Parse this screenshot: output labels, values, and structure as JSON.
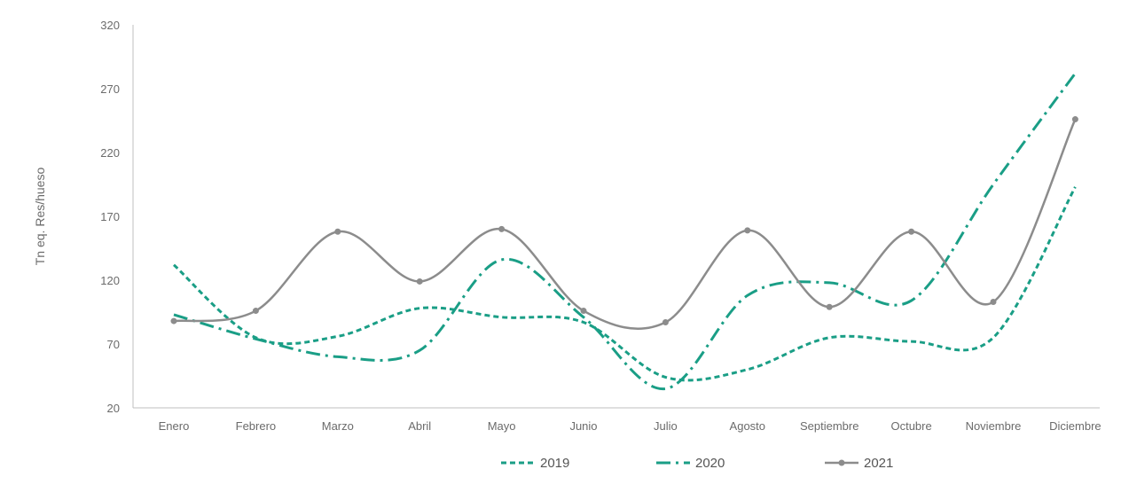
{
  "chart_data": {
    "type": "line",
    "ylabel": "Tn eq. Res/hueso",
    "ylim": [
      20,
      320
    ],
    "yticks": [
      "320",
      "270",
      "220",
      "170",
      "120",
      "70",
      "20"
    ],
    "categories": [
      "Enero",
      "Febrero",
      "Marzo",
      "Abril",
      "Mayo",
      "Junio",
      "Julio",
      "Agosto",
      "Septiembre",
      "Octubre",
      "Noviembre",
      "Diciembre"
    ],
    "grid": false,
    "legend_position": "bottom",
    "series": [
      {
        "name": "2019",
        "color": "#1a9e86",
        "style": "dotted",
        "values": [
          132,
          75,
          76,
          98,
          91,
          87,
          44,
          50,
          75,
          72,
          75,
          193
        ]
      },
      {
        "name": "2020",
        "color": "#1a9e86",
        "style": "dashdot",
        "values": [
          93,
          74,
          60,
          65,
          136,
          91,
          35,
          108,
          118,
          104,
          195,
          282
        ]
      },
      {
        "name": "2021",
        "color": "#8c8c8c",
        "style": "solid-markers",
        "values": [
          88,
          96,
          158,
          119,
          160,
          96,
          87,
          159,
          99,
          158,
          103,
          246
        ]
      }
    ]
  }
}
